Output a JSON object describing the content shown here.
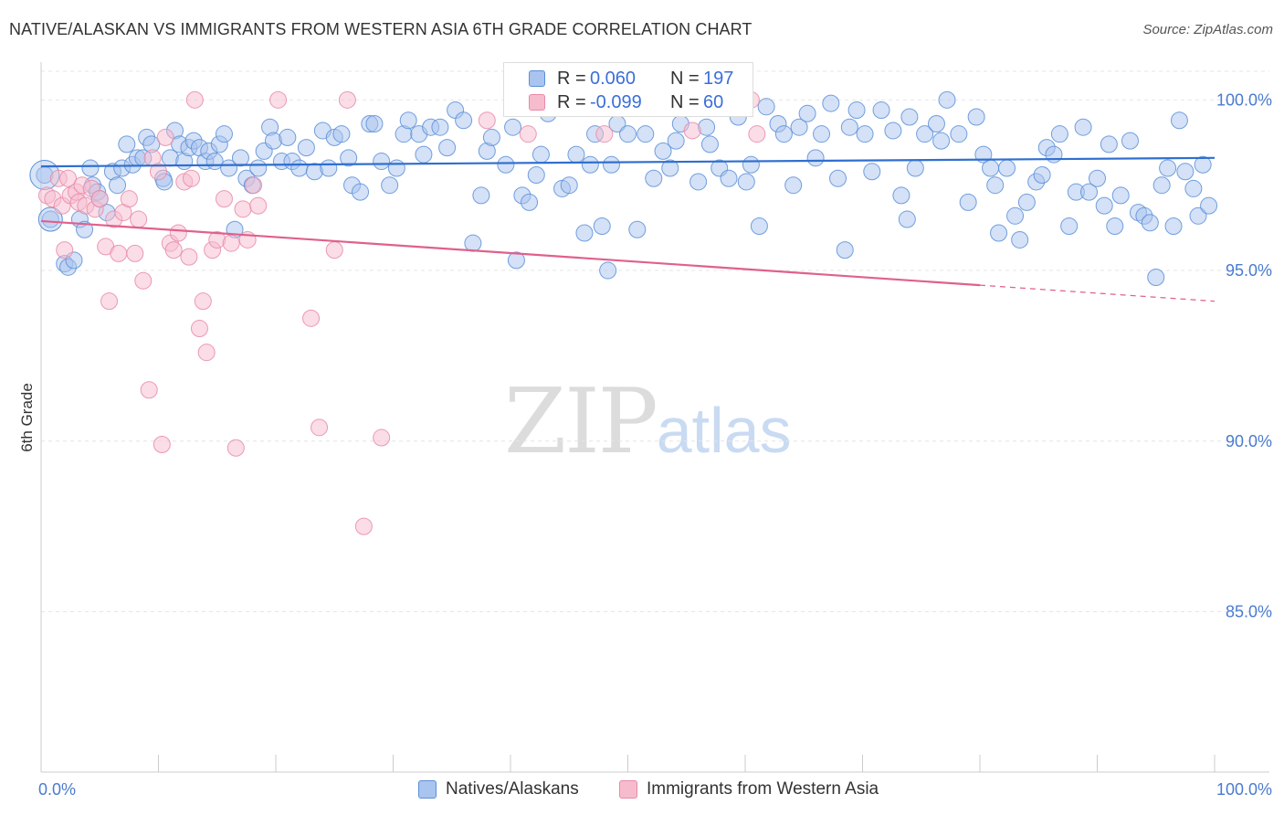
{
  "header": {
    "title": "NATIVE/ALASKAN VS IMMIGRANTS FROM WESTERN ASIA 6TH GRADE CORRELATION CHART",
    "source": "Source: ZipAtlas.com"
  },
  "watermark": {
    "zip": "ZIP",
    "atlas": "atlas"
  },
  "legend_top": {
    "rows": [
      {
        "r_label": "R =",
        "r_value": "0.060",
        "n_label": "N =",
        "n_value": "197"
      },
      {
        "r_label": "R =",
        "r_value": "-0.099",
        "n_label": "N =",
        "n_value": "60"
      }
    ]
  },
  "legend_bottom": {
    "items": [
      {
        "label": "Natives/Alaskans"
      },
      {
        "label": "Immigrants from Western Asia"
      }
    ]
  },
  "colors": {
    "blue_fill": "#a9c4ee",
    "blue_stroke": "#5b8fd9",
    "blue_line": "#2f6fcf",
    "pink_fill": "#f6bccd",
    "pink_stroke": "#e98aa8",
    "pink_line": "#e0608c",
    "tick_text": "#4a7bd0",
    "grid": "#e6e6e6"
  },
  "chart_data": {
    "type": "scatter",
    "title": "NATIVE/ALASKAN VS IMMIGRANTS FROM WESTERN ASIA 6TH GRADE CORRELATION CHART",
    "xlabel": "",
    "ylabel": "6th Grade",
    "xlim": [
      0,
      100
    ],
    "ylim": [
      80.3,
      101.0
    ],
    "x_tick_labels": [
      "0.0%",
      "100.0%"
    ],
    "y_ticks": [
      85,
      90,
      95,
      100
    ],
    "y_tick_labels": [
      "85.0%",
      "90.0%",
      "95.0%",
      "100.0%"
    ],
    "grid": true,
    "legend_placement": "bottom-center",
    "series": [
      {
        "name": "Natives/Alaskans",
        "color": "#a9c4ee",
        "R": 0.06,
        "N": 197,
        "trend": {
          "x": [
            0,
            100
          ],
          "y": [
            98.05,
            98.3
          ]
        },
        "points": [
          [
            0.3,
            97.8
          ],
          [
            0.8,
            96.5
          ],
          [
            2.0,
            95.2
          ],
          [
            2.3,
            95.1
          ],
          [
            2.8,
            95.3
          ],
          [
            3.3,
            96.5
          ],
          [
            3.7,
            96.2
          ],
          [
            4.2,
            98.0
          ],
          [
            4.4,
            97.5
          ],
          [
            4.8,
            97.3
          ],
          [
            5.0,
            97.1
          ],
          [
            5.6,
            96.7
          ],
          [
            6.1,
            97.9
          ],
          [
            6.5,
            97.5
          ],
          [
            6.9,
            98.0
          ],
          [
            7.3,
            98.7
          ],
          [
            7.8,
            98.1
          ],
          [
            8.2,
            98.3
          ],
          [
            8.7,
            98.3
          ],
          [
            9.0,
            98.9
          ],
          [
            9.4,
            98.7
          ],
          [
            10.4,
            97.7
          ],
          [
            10.5,
            97.6
          ],
          [
            11.0,
            98.3
          ],
          [
            11.4,
            99.1
          ],
          [
            11.8,
            98.7
          ],
          [
            12.2,
            98.2
          ],
          [
            12.6,
            98.6
          ],
          [
            13.0,
            98.8
          ],
          [
            13.5,
            98.6
          ],
          [
            14.0,
            98.2
          ],
          [
            14.3,
            98.5
          ],
          [
            14.8,
            98.2
          ],
          [
            15.2,
            98.7
          ],
          [
            15.6,
            99.0
          ],
          [
            16.0,
            98.0
          ],
          [
            16.5,
            96.2
          ],
          [
            17.0,
            98.3
          ],
          [
            17.5,
            97.7
          ],
          [
            18.0,
            97.5
          ],
          [
            18.5,
            98.0
          ],
          [
            19.0,
            98.5
          ],
          [
            19.5,
            99.2
          ],
          [
            19.8,
            98.8
          ],
          [
            20.5,
            98.2
          ],
          [
            21.0,
            98.9
          ],
          [
            21.4,
            98.2
          ],
          [
            22.0,
            98.0
          ],
          [
            22.6,
            98.6
          ],
          [
            23.3,
            97.9
          ],
          [
            24.0,
            99.1
          ],
          [
            24.5,
            98.0
          ],
          [
            25.0,
            98.9
          ],
          [
            25.6,
            99.0
          ],
          [
            26.2,
            98.3
          ],
          [
            26.5,
            97.5
          ],
          [
            27.2,
            97.3
          ],
          [
            28.0,
            99.3
          ],
          [
            28.4,
            99.3
          ],
          [
            29.0,
            98.2
          ],
          [
            29.7,
            97.5
          ],
          [
            30.3,
            98.0
          ],
          [
            30.9,
            99.0
          ],
          [
            31.3,
            99.4
          ],
          [
            32.2,
            99.0
          ],
          [
            32.6,
            98.4
          ],
          [
            33.2,
            99.2
          ],
          [
            34.0,
            99.2
          ],
          [
            34.6,
            98.6
          ],
          [
            35.3,
            99.7
          ],
          [
            36.0,
            99.4
          ],
          [
            36.8,
            95.8
          ],
          [
            37.5,
            97.2
          ],
          [
            38.0,
            98.5
          ],
          [
            38.4,
            98.9
          ],
          [
            39.6,
            98.1
          ],
          [
            40.2,
            99.2
          ],
          [
            40.5,
            95.3
          ],
          [
            41.0,
            97.2
          ],
          [
            41.6,
            97.0
          ],
          [
            42.2,
            97.8
          ],
          [
            42.6,
            98.4
          ],
          [
            43.2,
            99.6
          ],
          [
            44.4,
            97.4
          ],
          [
            45.0,
            97.5
          ],
          [
            45.6,
            98.4
          ],
          [
            46.3,
            96.1
          ],
          [
            46.8,
            98.1
          ],
          [
            47.2,
            99.0
          ],
          [
            47.8,
            96.3
          ],
          [
            48.3,
            95.0
          ],
          [
            48.6,
            98.1
          ],
          [
            49.1,
            99.3
          ],
          [
            50.0,
            99.0
          ],
          [
            50.8,
            96.2
          ],
          [
            51.5,
            99.0
          ],
          [
            52.2,
            97.7
          ],
          [
            53.0,
            98.5
          ],
          [
            53.6,
            98.0
          ],
          [
            54.1,
            98.8
          ],
          [
            54.5,
            99.3
          ],
          [
            55.0,
            100.0
          ],
          [
            56.0,
            97.6
          ],
          [
            56.7,
            99.2
          ],
          [
            57.0,
            98.7
          ],
          [
            57.8,
            98.0
          ],
          [
            58.6,
            97.7
          ],
          [
            59.4,
            99.5
          ],
          [
            60.1,
            97.6
          ],
          [
            60.5,
            98.1
          ],
          [
            61.2,
            96.3
          ],
          [
            61.8,
            99.8
          ],
          [
            62.8,
            99.3
          ],
          [
            63.3,
            99.0
          ],
          [
            64.1,
            97.5
          ],
          [
            64.6,
            99.2
          ],
          [
            65.3,
            99.6
          ],
          [
            66.0,
            98.3
          ],
          [
            66.5,
            99.0
          ],
          [
            67.3,
            99.9
          ],
          [
            67.9,
            97.7
          ],
          [
            68.5,
            95.6
          ],
          [
            68.9,
            99.2
          ],
          [
            69.5,
            99.7
          ],
          [
            70.2,
            99.0
          ],
          [
            70.8,
            97.9
          ],
          [
            71.6,
            99.7
          ],
          [
            72.6,
            99.1
          ],
          [
            73.3,
            97.2
          ],
          [
            73.8,
            96.5
          ],
          [
            74.0,
            99.5
          ],
          [
            74.5,
            98.0
          ],
          [
            75.3,
            99.0
          ],
          [
            76.3,
            99.3
          ],
          [
            76.7,
            98.8
          ],
          [
            77.2,
            100.0
          ],
          [
            78.2,
            99.0
          ],
          [
            79.0,
            97.0
          ],
          [
            79.7,
            99.5
          ],
          [
            80.3,
            98.4
          ],
          [
            80.9,
            98.0
          ],
          [
            81.3,
            97.5
          ],
          [
            81.6,
            96.1
          ],
          [
            82.3,
            98.0
          ],
          [
            83.0,
            96.6
          ],
          [
            83.4,
            95.9
          ],
          [
            84.0,
            97.0
          ],
          [
            84.8,
            97.6
          ],
          [
            85.3,
            97.8
          ],
          [
            85.7,
            98.6
          ],
          [
            86.3,
            98.4
          ],
          [
            86.8,
            99.0
          ],
          [
            87.6,
            96.3
          ],
          [
            88.2,
            97.3
          ],
          [
            88.8,
            99.2
          ],
          [
            89.3,
            97.3
          ],
          [
            90.0,
            97.7
          ],
          [
            90.6,
            96.9
          ],
          [
            91.0,
            98.7
          ],
          [
            91.5,
            96.3
          ],
          [
            92.0,
            97.2
          ],
          [
            92.8,
            98.8
          ],
          [
            93.5,
            96.7
          ],
          [
            94.0,
            96.6
          ],
          [
            94.5,
            96.4
          ],
          [
            95.0,
            94.8
          ],
          [
            95.5,
            97.5
          ],
          [
            96.0,
            98.0
          ],
          [
            96.5,
            96.3
          ],
          [
            97.0,
            99.4
          ],
          [
            97.5,
            97.9
          ],
          [
            98.2,
            97.4
          ],
          [
            98.6,
            96.6
          ],
          [
            99.0,
            98.1
          ],
          [
            99.5,
            96.9
          ]
        ]
      },
      {
        "name": "Immigrants from Western Asia",
        "color": "#f6bccd",
        "R": -0.099,
        "N": 60,
        "trend": {
          "x": [
            0,
            100
          ],
          "y": [
            96.45,
            94.1
          ]
        },
        "points": [
          [
            0.5,
            97.2
          ],
          [
            1.0,
            97.1
          ],
          [
            1.5,
            97.7
          ],
          [
            1.8,
            96.9
          ],
          [
            2.0,
            95.6
          ],
          [
            2.3,
            97.7
          ],
          [
            2.5,
            97.2
          ],
          [
            3.0,
            97.3
          ],
          [
            3.2,
            97.0
          ],
          [
            3.5,
            97.5
          ],
          [
            3.8,
            96.9
          ],
          [
            4.3,
            97.4
          ],
          [
            4.6,
            96.8
          ],
          [
            5.0,
            97.1
          ],
          [
            5.5,
            95.7
          ],
          [
            5.8,
            94.1
          ],
          [
            6.2,
            96.5
          ],
          [
            6.6,
            95.5
          ],
          [
            7.0,
            96.7
          ],
          [
            7.5,
            97.1
          ],
          [
            8.0,
            95.5
          ],
          [
            8.3,
            96.5
          ],
          [
            8.7,
            94.7
          ],
          [
            9.2,
            91.5
          ],
          [
            9.5,
            98.3
          ],
          [
            10.0,
            97.9
          ],
          [
            10.3,
            89.9
          ],
          [
            10.6,
            98.9
          ],
          [
            11.0,
            95.8
          ],
          [
            11.3,
            95.6
          ],
          [
            11.7,
            96.1
          ],
          [
            12.2,
            97.6
          ],
          [
            12.6,
            95.4
          ],
          [
            12.8,
            97.7
          ],
          [
            13.1,
            100.0
          ],
          [
            13.5,
            93.3
          ],
          [
            13.8,
            94.1
          ],
          [
            14.1,
            92.6
          ],
          [
            14.6,
            95.6
          ],
          [
            15.0,
            95.9
          ],
          [
            15.6,
            97.1
          ],
          [
            16.2,
            95.8
          ],
          [
            16.6,
            89.8
          ],
          [
            17.2,
            96.8
          ],
          [
            17.6,
            95.9
          ],
          [
            18.1,
            97.5
          ],
          [
            18.5,
            96.9
          ],
          [
            20.2,
            100.0
          ],
          [
            23.0,
            93.6
          ],
          [
            23.7,
            90.4
          ],
          [
            25.0,
            95.6
          ],
          [
            26.1,
            100.0
          ],
          [
            27.5,
            87.5
          ],
          [
            29.0,
            90.1
          ],
          [
            38.0,
            99.4
          ],
          [
            60.5,
            100.0
          ],
          [
            61.0,
            99.0
          ],
          [
            41.5,
            99.0
          ],
          [
            48.0,
            99.0
          ],
          [
            55.5,
            99.1
          ]
        ]
      }
    ]
  }
}
